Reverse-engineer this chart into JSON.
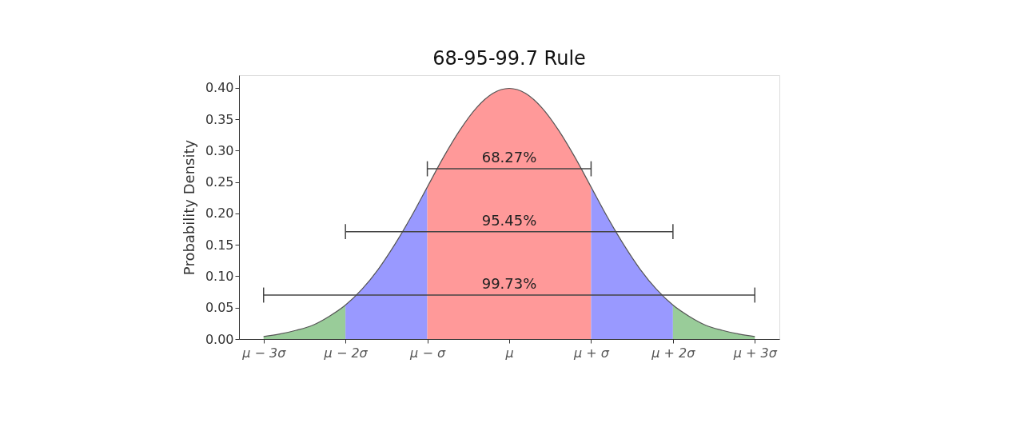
{
  "chart_data": {
    "type": "area",
    "title": "68-95-99.7 Rule",
    "ylabel": "Probability Density",
    "xlim": [
      -3.3,
      3.3
    ],
    "ylim": [
      0,
      0.42
    ],
    "xticks": [
      {
        "value": -3,
        "label": "μ − 3σ"
      },
      {
        "value": -2,
        "label": "μ − 2σ"
      },
      {
        "value": -1,
        "label": "μ − σ"
      },
      {
        "value": 0,
        "label": "μ"
      },
      {
        "value": 1,
        "label": "μ + σ"
      },
      {
        "value": 2,
        "label": "μ + 2σ"
      },
      {
        "value": 3,
        "label": "μ + 3σ"
      }
    ],
    "yticks": [
      {
        "value": 0,
        "label": "0.00"
      },
      {
        "value": 0.05,
        "label": "0.05"
      },
      {
        "value": 0.1,
        "label": "0.10"
      },
      {
        "value": 0.15,
        "label": "0.15"
      },
      {
        "value": 0.2,
        "label": "0.20"
      },
      {
        "value": 0.25,
        "label": "0.25"
      },
      {
        "value": 0.3,
        "label": "0.30"
      },
      {
        "value": 0.35,
        "label": "0.35"
      },
      {
        "value": 0.4,
        "label": "0.40"
      }
    ],
    "grid": false,
    "series": [
      {
        "color": "#99cc99",
        "x": [
          -3,
          -2.8,
          -2.6,
          -2.4,
          -2.2,
          -2
        ],
        "values": [
          0.004,
          0.008,
          0.014,
          0.022,
          0.036,
          0.054
        ]
      },
      {
        "color": "#9999ff",
        "x": [
          -2,
          -1.8,
          -1.6,
          -1.4,
          -1.2,
          -1
        ],
        "values": [
          0.054,
          0.079,
          0.111,
          0.15,
          0.194,
          0.242
        ]
      },
      {
        "color": "#ff9999",
        "x": [
          -1,
          -0.8,
          -0.6,
          -0.4,
          -0.2,
          0,
          0.2,
          0.4,
          0.6,
          0.8,
          1
        ],
        "values": [
          0.242,
          0.29,
          0.333,
          0.368,
          0.391,
          0.399,
          0.391,
          0.368,
          0.333,
          0.29,
          0.242
        ]
      },
      {
        "color": "#9999ff",
        "x": [
          1,
          1.2,
          1.4,
          1.6,
          1.8,
          2
        ],
        "values": [
          0.242,
          0.194,
          0.15,
          0.111,
          0.079,
          0.054
        ]
      },
      {
        "color": "#99cc99",
        "x": [
          2,
          2.2,
          2.4,
          2.6,
          2.8,
          3
        ],
        "values": [
          0.054,
          0.036,
          0.022,
          0.014,
          0.008,
          0.004
        ]
      },
      {
        "type": "line",
        "color": "#555555",
        "x": [
          -3,
          -2.8,
          -2.6,
          -2.4,
          -2.2,
          -2,
          -1.8,
          -1.6,
          -1.4,
          -1.2,
          -1,
          -0.8,
          -0.6,
          -0.4,
          -0.2,
          0,
          0.2,
          0.4,
          0.6,
          0.8,
          1,
          1.2,
          1.4,
          1.6,
          1.8,
          2,
          2.2,
          2.4,
          2.6,
          2.8,
          3
        ],
        "values": [
          0.004,
          0.008,
          0.014,
          0.022,
          0.036,
          0.054,
          0.079,
          0.111,
          0.15,
          0.194,
          0.242,
          0.29,
          0.333,
          0.368,
          0.391,
          0.399,
          0.391,
          0.368,
          0.333,
          0.29,
          0.242,
          0.194,
          0.15,
          0.111,
          0.079,
          0.054,
          0.036,
          0.022,
          0.014,
          0.008,
          0.004
        ],
        "line_style": "solid"
      },
      {
        "type": "line",
        "name": "68.27%",
        "color": "#444444",
        "x": [
          -1,
          1
        ],
        "values": [
          0.271,
          0.271
        ],
        "errors": [
          0.012,
          0.012
        ]
      },
      {
        "type": "line",
        "name": "95.45%",
        "color": "#444444",
        "x": [
          -2,
          2
        ],
        "values": [
          0.171,
          0.171
        ],
        "errors": [
          0.012,
          0.012
        ]
      },
      {
        "type": "line",
        "name": "99.73%",
        "color": "#444444",
        "x": [
          -3,
          3
        ],
        "values": [
          0.07,
          0.07
        ],
        "errors": [
          0.012,
          0.012
        ]
      }
    ]
  }
}
